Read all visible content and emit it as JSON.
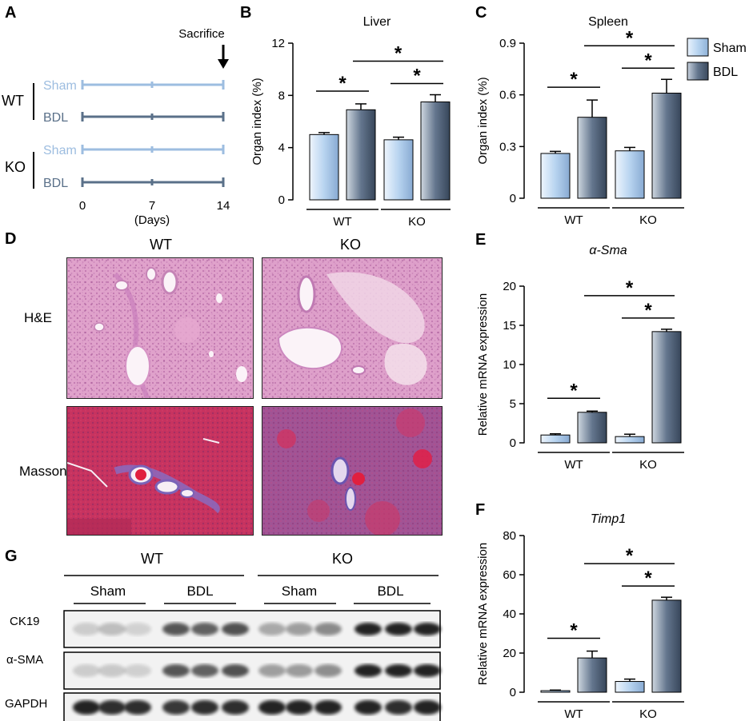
{
  "panels": {
    "A": {
      "letter": "A",
      "sacrifice_label": "Sacrifice",
      "groups": [
        {
          "genotype": "WT",
          "rows": [
            "Sham",
            "BDL"
          ]
        },
        {
          "genotype": "KO",
          "rows": [
            "Sham",
            "BDL"
          ]
        }
      ],
      "ticks": [
        "0",
        "7",
        "14"
      ],
      "xlabel": "(Days)",
      "colors": {
        "sham": "#9dbde0",
        "bdl": "#5a7089"
      }
    },
    "B": {
      "letter": "B"
    },
    "C": {
      "letter": "C"
    },
    "D": {
      "letter": "D",
      "columns": [
        "WT",
        "KO"
      ],
      "rows": [
        "H&E",
        "Masson"
      ]
    },
    "E": {
      "letter": "E"
    },
    "F": {
      "letter": "F"
    },
    "G": {
      "letter": "G",
      "genotypes": [
        "WT",
        "KO"
      ],
      "conditions": [
        "Sham",
        "BDL",
        "Sham",
        "BDL"
      ],
      "proteins": [
        "CK19",
        "α-SMA",
        "GAPDH"
      ]
    }
  },
  "legend": {
    "items": [
      "Sham",
      "BDL"
    ],
    "colors": {
      "sham": "#b8d4f0",
      "bdl": "#64768e"
    }
  },
  "chart_data": [
    {
      "panel": "B",
      "type": "bar",
      "title": "Liver",
      "ylabel": "Organ index (%)",
      "groups": [
        "WT",
        "KO"
      ],
      "ylim": [
        0,
        12
      ],
      "yticks": [
        "0",
        "4",
        "8",
        "12"
      ],
      "series": [
        {
          "name": "Sham",
          "values": [
            5.0,
            4.6
          ],
          "errors": [
            0.15,
            0.2
          ]
        },
        {
          "name": "BDL",
          "values": [
            6.9,
            7.5
          ],
          "errors": [
            0.45,
            0.55
          ]
        }
      ],
      "significance": [
        "*",
        "*",
        "*"
      ]
    },
    {
      "panel": "C",
      "type": "bar",
      "title": "Spleen",
      "ylabel": "Organ index (%)",
      "groups": [
        "WT",
        "KO"
      ],
      "ylim": [
        0,
        0.9
      ],
      "yticks": [
        "0",
        "0.3",
        "0.6",
        "0.9"
      ],
      "series": [
        {
          "name": "Sham",
          "values": [
            0.26,
            0.275
          ],
          "errors": [
            0.012,
            0.02
          ]
        },
        {
          "name": "BDL",
          "values": [
            0.47,
            0.61
          ],
          "errors": [
            0.1,
            0.08
          ]
        }
      ],
      "significance": [
        "*",
        "*",
        "*"
      ]
    },
    {
      "panel": "E",
      "type": "bar",
      "title": "α-Sma",
      "ylabel": "Relative mRNA expression",
      "groups": [
        "WT",
        "KO"
      ],
      "ylim": [
        0,
        20
      ],
      "yticks": [
        "0",
        "5",
        "10",
        "15",
        "20"
      ],
      "series": [
        {
          "name": "Sham",
          "values": [
            1.0,
            0.8
          ],
          "errors": [
            0.15,
            0.3
          ]
        },
        {
          "name": "BDL",
          "values": [
            3.9,
            14.2
          ],
          "errors": [
            0.15,
            0.3
          ]
        }
      ],
      "significance": [
        "*",
        "*",
        "*"
      ]
    },
    {
      "panel": "F",
      "type": "bar",
      "title": "Timp1",
      "ylabel": "Relative mRNA expression",
      "groups": [
        "WT",
        "KO"
      ],
      "ylim": [
        0,
        80
      ],
      "yticks": [
        "0",
        "20",
        "40",
        "60",
        "80"
      ],
      "series": [
        {
          "name": "Sham",
          "values": [
            0.8,
            5.5
          ],
          "errors": [
            0.3,
            1.2
          ]
        },
        {
          "name": "BDL",
          "values": [
            17.5,
            47.0
          ],
          "errors": [
            3.5,
            1.5
          ]
        }
      ],
      "significance": [
        "*",
        "*",
        "*"
      ]
    }
  ]
}
